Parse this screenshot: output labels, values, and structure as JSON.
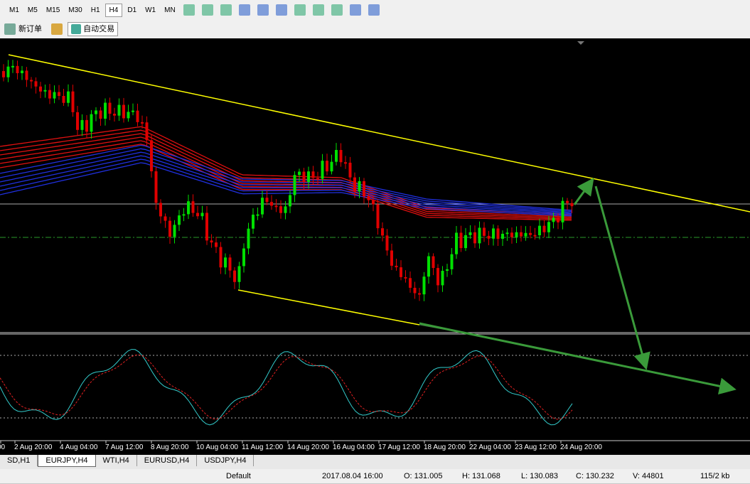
{
  "toolbar": {
    "timeframes": [
      "M1",
      "M5",
      "M15",
      "M30",
      "H1",
      "H4",
      "D1",
      "W1",
      "MN"
    ],
    "active": "H4",
    "new_order": "新订单",
    "auto_trading": "自动交易"
  },
  "chart": {
    "time_labels": [
      "00",
      "2 Aug 20:00",
      "4 Aug 04:00",
      "7 Aug 12:00",
      "8 Aug 20:00",
      "10 Aug 04:00",
      "11 Aug 12:00",
      "14 Aug 20:00",
      "16 Aug 04:00",
      "17 Aug 12:00",
      "18 Aug 20:00",
      "22 Aug 04:00",
      "23 Aug 12:00",
      "24 Aug 20:00"
    ]
  },
  "tabs": [
    "SD,H1",
    "EURJPY,H4",
    "WTI,H4",
    "EURUSD,H4",
    "USDJPY,H4"
  ],
  "active_tab": "EURJPY,H4",
  "status": {
    "profile": "Default",
    "time": "2017.08.04 16:00",
    "open": "O: 131.005",
    "high": "H: 131.068",
    "low": "L: 130.083",
    "close": "C: 130.232",
    "volume": "V: 44801",
    "traffic": "115/2 kb"
  }
}
